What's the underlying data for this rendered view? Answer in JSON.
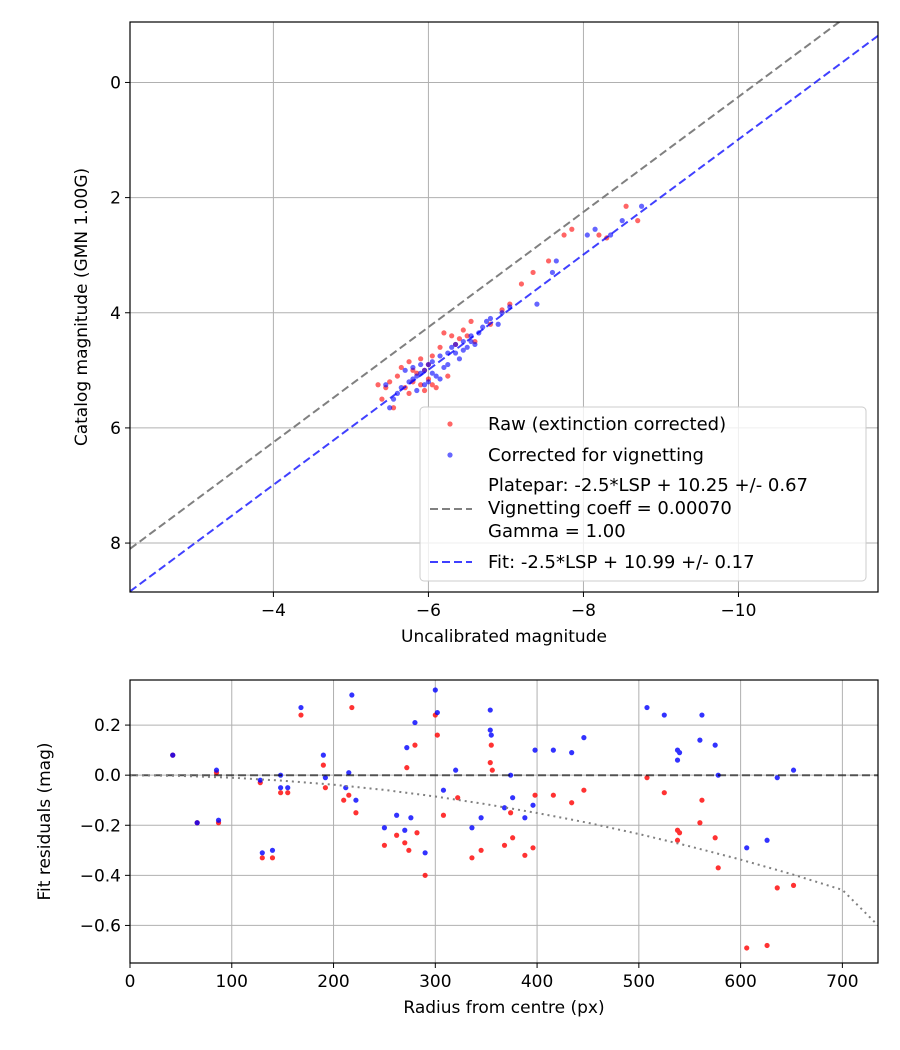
{
  "chart_data": [
    {
      "type": "scatter",
      "xlabel": "Uncalibrated magnitude",
      "ylabel": "Catalog magnitude (GMN 1.00G)",
      "xlim": [
        -2.15,
        -11.8
      ],
      "ylim": [
        8.85,
        -1.05
      ],
      "x_inverted": true,
      "y_inverted": true,
      "xticks": [
        -4,
        -6,
        -8,
        -10
      ],
      "xtick_labels": [
        "−4",
        "−6",
        "−8",
        "−10"
      ],
      "yticks": [
        0,
        2,
        4,
        6,
        8
      ],
      "ytick_labels": [
        "0",
        "2",
        "4",
        "6",
        "8"
      ],
      "grid": true,
      "legend_position": "lower-right",
      "colors": {
        "raw": "#ff0000",
        "corrected": "#0000ff",
        "platepar": "#808080",
        "fit": "#0000ff"
      },
      "series": [
        {
          "name": "Raw (extinction corrected)",
          "kind": "points",
          "color": "#ff0000",
          "points": [
            [
              -8.55,
              2.15
            ],
            [
              -8.2,
              2.65
            ],
            [
              -7.85,
              2.55
            ],
            [
              -7.75,
              2.65
            ],
            [
              -7.55,
              3.1
            ],
            [
              -7.35,
              3.3
            ],
            [
              -7.2,
              3.5
            ],
            [
              -7.05,
              3.85
            ],
            [
              -6.95,
              3.95
            ],
            [
              -6.8,
              4.2
            ],
            [
              -6.55,
              4.15
            ],
            [
              -6.45,
              4.3
            ],
            [
              -6.4,
              4.45
            ],
            [
              -6.3,
              4.4
            ],
            [
              -6.2,
              4.35
            ],
            [
              -6.15,
              4.6
            ],
            [
              -6.05,
              4.75
            ],
            [
              -6.0,
              4.9
            ],
            [
              -5.95,
              5.0
            ],
            [
              -5.9,
              4.8
            ],
            [
              -5.85,
              5.05
            ],
            [
              -5.8,
              5.2
            ],
            [
              -5.75,
              4.85
            ],
            [
              -5.7,
              5.3
            ],
            [
              -5.6,
              5.1
            ],
            [
              -5.55,
              5.65
            ],
            [
              -5.5,
              5.2
            ],
            [
              -5.45,
              5.3
            ],
            [
              -5.4,
              5.5
            ],
            [
              -5.35,
              5.25
            ],
            [
              -6.1,
              5.3
            ],
            [
              -6.25,
              5.1
            ],
            [
              -5.95,
              5.35
            ],
            [
              -6.35,
              4.55
            ],
            [
              -6.5,
              4.4
            ],
            [
              -6.6,
              4.5
            ],
            [
              -5.65,
              4.95
            ],
            [
              -6.0,
              5.15
            ],
            [
              -5.8,
              5.0
            ],
            [
              -5.9,
              5.25
            ],
            [
              -6.05,
              5.25
            ],
            [
              -5.75,
              5.4
            ],
            [
              -8.7,
              2.4
            ],
            [
              -8.3,
              2.7
            ]
          ]
        },
        {
          "name": "Corrected for vignetting",
          "kind": "points",
          "color": "#0000ff",
          "points": [
            [
              -8.75,
              2.15
            ],
            [
              -8.5,
              2.4
            ],
            [
              -8.35,
              2.65
            ],
            [
              -8.15,
              2.55
            ],
            [
              -8.05,
              2.65
            ],
            [
              -7.65,
              3.1
            ],
            [
              -7.6,
              3.3
            ],
            [
              -7.4,
              3.85
            ],
            [
              -7.05,
              3.9
            ],
            [
              -6.95,
              4.0
            ],
            [
              -6.75,
              4.15
            ],
            [
              -6.7,
              4.25
            ],
            [
              -6.65,
              4.35
            ],
            [
              -6.55,
              4.5
            ],
            [
              -6.45,
              4.5
            ],
            [
              -6.35,
              4.55
            ],
            [
              -6.3,
              4.6
            ],
            [
              -6.25,
              4.7
            ],
            [
              -6.15,
              4.75
            ],
            [
              -6.05,
              4.85
            ],
            [
              -6.0,
              4.9
            ],
            [
              -5.95,
              5.0
            ],
            [
              -5.9,
              5.05
            ],
            [
              -5.85,
              5.1
            ],
            [
              -5.8,
              5.15
            ],
            [
              -5.75,
              5.2
            ],
            [
              -5.65,
              5.3
            ],
            [
              -5.6,
              5.4
            ],
            [
              -5.55,
              5.5
            ],
            [
              -5.45,
              5.25
            ],
            [
              -5.5,
              5.65
            ],
            [
              -6.1,
              5.1
            ],
            [
              -6.2,
              4.95
            ],
            [
              -6.4,
              4.8
            ],
            [
              -6.5,
              4.6
            ],
            [
              -6.6,
              4.55
            ],
            [
              -6.8,
              4.1
            ],
            [
              -6.9,
              4.2
            ],
            [
              -6.0,
              5.2
            ],
            [
              -5.9,
              4.9
            ],
            [
              -5.7,
              5.0
            ],
            [
              -5.8,
              4.95
            ],
            [
              -6.05,
              5.05
            ],
            [
              -6.15,
              5.15
            ],
            [
              -5.95,
              5.25
            ],
            [
              -5.85,
              5.35
            ],
            [
              -6.25,
              4.9
            ],
            [
              -6.35,
              4.7
            ],
            [
              -6.45,
              4.65
            ],
            [
              -6.55,
              4.4
            ]
          ]
        },
        {
          "name": "Platepar: -2.5*LSP + 10.25 +/- 0.67\nVignetting coeff = 0.00070\nGamma = 1.00",
          "kind": "line",
          "style": "dashed",
          "color": "#808080",
          "x": [
            -2.15,
            -11.8
          ],
          "y": [
            8.1,
            -1.55
          ]
        },
        {
          "name": "Fit: -2.5*LSP + 10.99 +/- 0.17",
          "kind": "line",
          "style": "dashed",
          "color": "#0000ff",
          "x": [
            -2.15,
            -11.8
          ],
          "y": [
            8.84,
            -0.81
          ]
        }
      ]
    },
    {
      "type": "scatter",
      "xlabel": "Radius from centre (px)",
      "ylabel": "Fit residuals (mag)",
      "xlim": [
        0,
        735
      ],
      "ylim": [
        -0.75,
        0.38
      ],
      "xticks": [
        0,
        100,
        200,
        300,
        400,
        500,
        600,
        700
      ],
      "xtick_labels": [
        "0",
        "100",
        "200",
        "300",
        "400",
        "500",
        "600",
        "700"
      ],
      "yticks": [
        0.2,
        0.0,
        -0.2,
        -0.4,
        -0.6
      ],
      "ytick_labels": [
        "0.2",
        "0.0",
        "−0.2",
        "−0.4",
        "−0.6"
      ],
      "grid": true,
      "series": [
        {
          "kind": "points",
          "color": "#ff0000",
          "points": [
            [
              42,
              0.08
            ],
            [
              66,
              -0.19
            ],
            [
              85,
              0.01
            ],
            [
              87,
              -0.19
            ],
            [
              128,
              -0.03
            ],
            [
              130,
              -0.33
            ],
            [
              140,
              -0.33
            ],
            [
              148,
              -0.07
            ],
            [
              155,
              -0.07
            ],
            [
              168,
              0.24
            ],
            [
              190,
              0.04
            ],
            [
              192,
              -0.05
            ],
            [
              210,
              -0.1
            ],
            [
              215,
              -0.08
            ],
            [
              218,
              0.27
            ],
            [
              222,
              -0.15
            ],
            [
              250,
              -0.28
            ],
            [
              262,
              -0.24
            ],
            [
              270,
              -0.27
            ],
            [
              272,
              0.03
            ],
            [
              274,
              -0.3
            ],
            [
              280,
              0.12
            ],
            [
              282,
              -0.23
            ],
            [
              290,
              -0.4
            ],
            [
              300,
              0.24
            ],
            [
              302,
              0.16
            ],
            [
              308,
              -0.16
            ],
            [
              322,
              -0.09
            ],
            [
              336,
              -0.33
            ],
            [
              345,
              -0.3
            ],
            [
              355,
              0.12
            ],
            [
              354,
              0.05
            ],
            [
              356,
              0.02
            ],
            [
              368,
              -0.28
            ],
            [
              374,
              -0.15
            ],
            [
              376,
              -0.25
            ],
            [
              388,
              -0.32
            ],
            [
              396,
              -0.29
            ],
            [
              398,
              -0.08
            ],
            [
              416,
              -0.08
            ],
            [
              434,
              -0.11
            ],
            [
              446,
              -0.06
            ],
            [
              508,
              -0.01
            ],
            [
              525,
              -0.07
            ],
            [
              538,
              -0.22
            ],
            [
              538,
              -0.26
            ],
            [
              540,
              -0.23
            ],
            [
              560,
              -0.19
            ],
            [
              562,
              -0.1
            ],
            [
              575,
              -0.25
            ],
            [
              578,
              -0.37
            ],
            [
              606,
              -0.69
            ],
            [
              626,
              -0.68
            ],
            [
              636,
              -0.45
            ],
            [
              652,
              -0.44
            ]
          ]
        },
        {
          "kind": "points",
          "color": "#0000ff",
          "points": [
            [
              42,
              0.08
            ],
            [
              66,
              -0.19
            ],
            [
              85,
              0.02
            ],
            [
              87,
              -0.18
            ],
            [
              128,
              -0.02
            ],
            [
              130,
              -0.31
            ],
            [
              140,
              -0.3
            ],
            [
              148,
              -0.05
            ],
            [
              148,
              0.0
            ],
            [
              155,
              -0.05
            ],
            [
              168,
              0.27
            ],
            [
              190,
              0.08
            ],
            [
              192,
              -0.01
            ],
            [
              212,
              -0.05
            ],
            [
              215,
              0.01
            ],
            [
              218,
              0.32
            ],
            [
              222,
              -0.1
            ],
            [
              250,
              -0.21
            ],
            [
              262,
              -0.16
            ],
            [
              270,
              -0.22
            ],
            [
              272,
              0.11
            ],
            [
              276,
              -0.17
            ],
            [
              280,
              0.21
            ],
            [
              290,
              -0.31
            ],
            [
              300,
              0.34
            ],
            [
              302,
              0.25
            ],
            [
              308,
              -0.06
            ],
            [
              320,
              0.02
            ],
            [
              336,
              -0.21
            ],
            [
              345,
              -0.17
            ],
            [
              354,
              0.26
            ],
            [
              354,
              0.18
            ],
            [
              355,
              0.16
            ],
            [
              368,
              -0.13
            ],
            [
              374,
              0.0
            ],
            [
              376,
              -0.09
            ],
            [
              388,
              -0.17
            ],
            [
              396,
              -0.12
            ],
            [
              398,
              0.1
            ],
            [
              416,
              0.1
            ],
            [
              434,
              0.09
            ],
            [
              446,
              0.15
            ],
            [
              508,
              0.27
            ],
            [
              525,
              0.24
            ],
            [
              538,
              0.1
            ],
            [
              538,
              0.06
            ],
            [
              540,
              0.09
            ],
            [
              560,
              0.14
            ],
            [
              562,
              0.24
            ],
            [
              575,
              0.12
            ],
            [
              578,
              0.0
            ],
            [
              606,
              -0.29
            ],
            [
              626,
              -0.26
            ],
            [
              636,
              -0.01
            ],
            [
              652,
              0.02
            ]
          ]
        },
        {
          "kind": "line",
          "style": "dashed",
          "color": "#000000",
          "x": [
            0,
            735
          ],
          "y": [
            0,
            0
          ]
        },
        {
          "kind": "curve",
          "style": "dotted",
          "color": "#808080",
          "x": [
            0,
            50,
            100,
            150,
            200,
            250,
            300,
            350,
            400,
            450,
            500,
            550,
            600,
            650,
            700,
            735
          ],
          "y": [
            0,
            -0.003,
            -0.01,
            -0.022,
            -0.038,
            -0.059,
            -0.085,
            -0.116,
            -0.151,
            -0.19,
            -0.235,
            -0.284,
            -0.337,
            -0.395,
            -0.458,
            -0.6
          ]
        }
      ]
    }
  ]
}
